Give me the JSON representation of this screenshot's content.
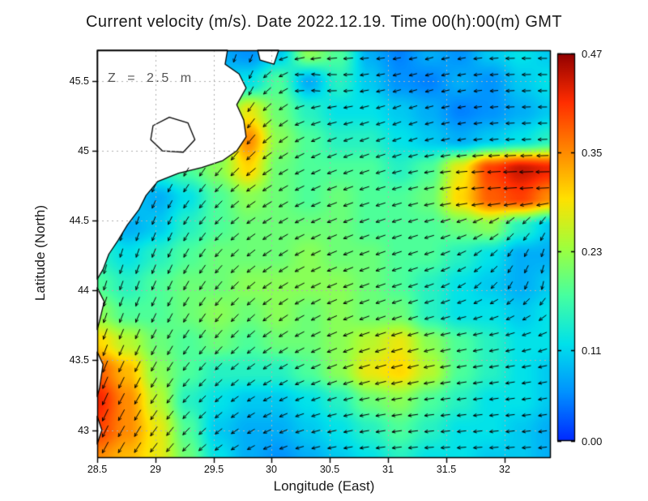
{
  "title": "Current velocity (m/s). Date 2022.12.19. Time 00(h):00(m) GMT",
  "chart_data": {
    "type": "heatmap",
    "subtype": "vector_field_map",
    "title": "Current velocity (m/s). Date 2022.12.19. Time 00(h):00(m) GMT",
    "annotation": "Z = 2.5 m",
    "units": "m/s",
    "xlabel": "Longitude (East)",
    "ylabel": "Latitude (North)",
    "xlim": [
      28.5,
      32.4
    ],
    "ylim": [
      42.8,
      45.72
    ],
    "xticks": [
      28.5,
      29,
      29.5,
      30,
      30.5,
      31,
      31.5,
      32
    ],
    "xtick_labels": [
      "28.5",
      "29",
      "29.5",
      "30",
      "30.5",
      "31",
      "31.5",
      "32"
    ],
    "yticks": [
      43,
      43.5,
      44,
      44.5,
      45,
      45.5
    ],
    "ytick_labels": [
      "43",
      "43.5",
      "44",
      "44.5",
      "45",
      "45.5"
    ],
    "grid_style": "dashed",
    "colorbar": {
      "min": 0,
      "max": 0.47,
      "tick_values": [
        0.47,
        0.35,
        0.23,
        0.11,
        0
      ],
      "tick_labels": [
        "0.47",
        "0.35",
        "0.23",
        "0.11",
        "0.00"
      ],
      "colormap": "jet",
      "stops": [
        {
          "t": 0.0,
          "rgb": [
            0,
            40,
            255
          ]
        },
        {
          "t": 0.125,
          "rgb": [
            0,
            145,
            255
          ]
        },
        {
          "t": 0.25,
          "rgb": [
            0,
            225,
            235
          ]
        },
        {
          "t": 0.375,
          "rgb": [
            70,
            255,
            160
          ]
        },
        {
          "t": 0.5,
          "rgb": [
            160,
            255,
            60
          ]
        },
        {
          "t": 0.625,
          "rgb": [
            255,
            225,
            0
          ]
        },
        {
          "t": 0.75,
          "rgb": [
            255,
            135,
            0
          ]
        },
        {
          "t": 0.875,
          "rgb": [
            255,
            45,
            0
          ]
        },
        {
          "t": 1.0,
          "rgb": [
            145,
            0,
            0
          ]
        }
      ]
    },
    "speed_grid": {
      "lon": [
        28.5,
        28.76,
        29.02,
        29.28,
        29.54,
        29.8,
        30.06,
        30.32,
        30.58,
        30.84,
        31.1,
        31.36,
        31.62,
        31.88,
        32.14,
        32.4
      ],
      "lat": [
        45.7,
        45.49,
        45.28,
        45.07,
        44.86,
        44.66,
        44.45,
        44.24,
        44.03,
        43.82,
        43.61,
        43.41,
        43.2,
        42.99,
        42.8
      ],
      "values_mps": [
        [
          0.1,
          0.1,
          0.1,
          0.1,
          0.08,
          0.06,
          0.1,
          0.22,
          0.18,
          0.08,
          0.05,
          0.08,
          0.06,
          0.1,
          0.12,
          0.1
        ],
        [
          0.1,
          0.1,
          0.1,
          0.1,
          0.1,
          0.12,
          0.18,
          0.08,
          0.15,
          0.1,
          0.06,
          0.05,
          0.08,
          0.06,
          0.1,
          0.12
        ],
        [
          0.1,
          0.1,
          0.1,
          0.1,
          0.15,
          0.28,
          0.2,
          0.15,
          0.12,
          0.12,
          0.1,
          0.08,
          0.05,
          0.06,
          0.08,
          0.1
        ],
        [
          0.1,
          0.1,
          0.1,
          0.12,
          0.2,
          0.35,
          0.22,
          0.18,
          0.15,
          0.15,
          0.12,
          0.1,
          0.08,
          0.1,
          0.12,
          0.15
        ],
        [
          0.1,
          0.1,
          0.15,
          0.18,
          0.22,
          0.3,
          0.2,
          0.18,
          0.18,
          0.18,
          0.15,
          0.18,
          0.28,
          0.4,
          0.44,
          0.42
        ],
        [
          0.1,
          0.1,
          0.08,
          0.12,
          0.18,
          0.22,
          0.2,
          0.18,
          0.2,
          0.18,
          0.18,
          0.2,
          0.3,
          0.38,
          0.4,
          0.35
        ],
        [
          0.12,
          0.08,
          0.1,
          0.15,
          0.18,
          0.2,
          0.2,
          0.2,
          0.2,
          0.18,
          0.18,
          0.18,
          0.2,
          0.22,
          0.15,
          0.1
        ],
        [
          0.15,
          0.12,
          0.15,
          0.18,
          0.2,
          0.2,
          0.2,
          0.22,
          0.2,
          0.2,
          0.18,
          0.18,
          0.15,
          0.12,
          0.08,
          0.08
        ],
        [
          0.18,
          0.15,
          0.18,
          0.2,
          0.2,
          0.22,
          0.22,
          0.22,
          0.22,
          0.2,
          0.18,
          0.15,
          0.12,
          0.1,
          0.08,
          0.1
        ],
        [
          0.22,
          0.18,
          0.18,
          0.2,
          0.22,
          0.2,
          0.22,
          0.2,
          0.22,
          0.2,
          0.2,
          0.15,
          0.12,
          0.12,
          0.1,
          0.12
        ],
        [
          0.3,
          0.25,
          0.2,
          0.18,
          0.2,
          0.18,
          0.2,
          0.2,
          0.22,
          0.25,
          0.28,
          0.22,
          0.18,
          0.15,
          0.12,
          0.12
        ],
        [
          0.38,
          0.32,
          0.22,
          0.18,
          0.15,
          0.15,
          0.15,
          0.18,
          0.22,
          0.28,
          0.3,
          0.25,
          0.18,
          0.15,
          0.12,
          0.1
        ],
        [
          0.42,
          0.35,
          0.25,
          0.15,
          0.12,
          0.1,
          0.1,
          0.12,
          0.15,
          0.2,
          0.22,
          0.18,
          0.15,
          0.12,
          0.12,
          0.1
        ],
        [
          0.4,
          0.35,
          0.28,
          0.18,
          0.1,
          0.08,
          0.08,
          0.1,
          0.12,
          0.15,
          0.18,
          0.15,
          0.12,
          0.12,
          0.1,
          0.08
        ],
        [
          0.35,
          0.32,
          0.28,
          0.2,
          0.12,
          0.08,
          0.06,
          0.08,
          0.1,
          0.12,
          0.15,
          0.12,
          0.12,
          0.1,
          0.1,
          0.08
        ]
      ]
    },
    "direction_deg_grid": [
      [
        260,
        260,
        260,
        260,
        255,
        250,
        200,
        190,
        185,
        185,
        190,
        195,
        190,
        185,
        180,
        180
      ],
      [
        260,
        260,
        258,
        256,
        252,
        245,
        210,
        170,
        180,
        190,
        195,
        195,
        190,
        185,
        182,
        180
      ],
      [
        258,
        257,
        255,
        252,
        248,
        235,
        215,
        195,
        190,
        195,
        200,
        195,
        190,
        185,
        182,
        180
      ],
      [
        256,
        255,
        252,
        250,
        245,
        230,
        215,
        205,
        200,
        200,
        200,
        195,
        190,
        185,
        183,
        182
      ],
      [
        250,
        248,
        245,
        240,
        230,
        220,
        210,
        205,
        200,
        198,
        195,
        190,
        185,
        183,
        182,
        181
      ],
      [
        252,
        250,
        245,
        235,
        225,
        215,
        210,
        205,
        200,
        198,
        196,
        192,
        188,
        185,
        184,
        183
      ],
      [
        255,
        252,
        248,
        238,
        225,
        215,
        210,
        205,
        202,
        200,
        198,
        196,
        200,
        210,
        225,
        240
      ],
      [
        255,
        252,
        248,
        240,
        228,
        218,
        212,
        206,
        202,
        200,
        198,
        198,
        205,
        220,
        240,
        255
      ],
      [
        253,
        250,
        246,
        240,
        230,
        220,
        212,
        206,
        202,
        200,
        198,
        200,
        210,
        225,
        245,
        260
      ],
      [
        252,
        248,
        244,
        238,
        230,
        222,
        214,
        208,
        203,
        200,
        198,
        196,
        195,
        200,
        210,
        220
      ],
      [
        250,
        246,
        242,
        236,
        228,
        220,
        212,
        206,
        202,
        198,
        196,
        194,
        192,
        192,
        195,
        200
      ],
      [
        248,
        244,
        240,
        232,
        224,
        216,
        210,
        204,
        200,
        196,
        194,
        192,
        190,
        190,
        190,
        192
      ],
      [
        246,
        242,
        236,
        228,
        220,
        212,
        206,
        200,
        196,
        192,
        190,
        188,
        188,
        188,
        188,
        190
      ],
      [
        244,
        240,
        234,
        226,
        218,
        210,
        202,
        196,
        192,
        190,
        188,
        186,
        186,
        186,
        186,
        188
      ],
      [
        242,
        238,
        232,
        224,
        216,
        208,
        200,
        194,
        190,
        188,
        186,
        184,
        184,
        184,
        184,
        186
      ]
    ],
    "land_polygons_lonlat": [
      [
        [
          28.5,
          45.72
        ],
        [
          29.62,
          45.72
        ],
        [
          29.6,
          45.62
        ],
        [
          29.72,
          45.55
        ],
        [
          29.78,
          45.45
        ],
        [
          29.7,
          45.33
        ],
        [
          29.76,
          45.22
        ],
        [
          29.78,
          45.1
        ],
        [
          29.7,
          45.0
        ],
        [
          29.58,
          44.93
        ],
        [
          29.4,
          44.88
        ],
        [
          29.2,
          44.84
        ],
        [
          29.02,
          44.78
        ],
        [
          28.92,
          44.68
        ],
        [
          28.86,
          44.58
        ],
        [
          28.76,
          44.47
        ],
        [
          28.68,
          44.36
        ],
        [
          28.6,
          44.26
        ],
        [
          28.55,
          44.15
        ],
        [
          28.5,
          44.08
        ]
      ],
      [
        [
          29.88,
          45.72
        ],
        [
          30.06,
          45.72
        ],
        [
          30.02,
          45.62
        ],
        [
          29.9,
          45.65
        ]
      ],
      [
        [
          28.5,
          44.02
        ],
        [
          28.56,
          43.92
        ],
        [
          28.52,
          43.78
        ],
        [
          28.5,
          43.72
        ]
      ],
      [
        [
          28.5,
          43.56
        ],
        [
          28.55,
          43.47
        ],
        [
          28.52,
          43.3
        ],
        [
          28.5,
          43.24
        ]
      ],
      [
        [
          28.5,
          43.1
        ],
        [
          28.54,
          43.0
        ],
        [
          28.5,
          42.9
        ]
      ]
    ],
    "lake_outline_lonlat": [
      [
        28.98,
        45.18
      ],
      [
        29.12,
        45.24
      ],
      [
        29.28,
        45.2
      ],
      [
        29.34,
        45.08
      ],
      [
        29.24,
        44.99
      ],
      [
        29.06,
        45.0
      ],
      [
        28.96,
        45.08
      ]
    ]
  }
}
